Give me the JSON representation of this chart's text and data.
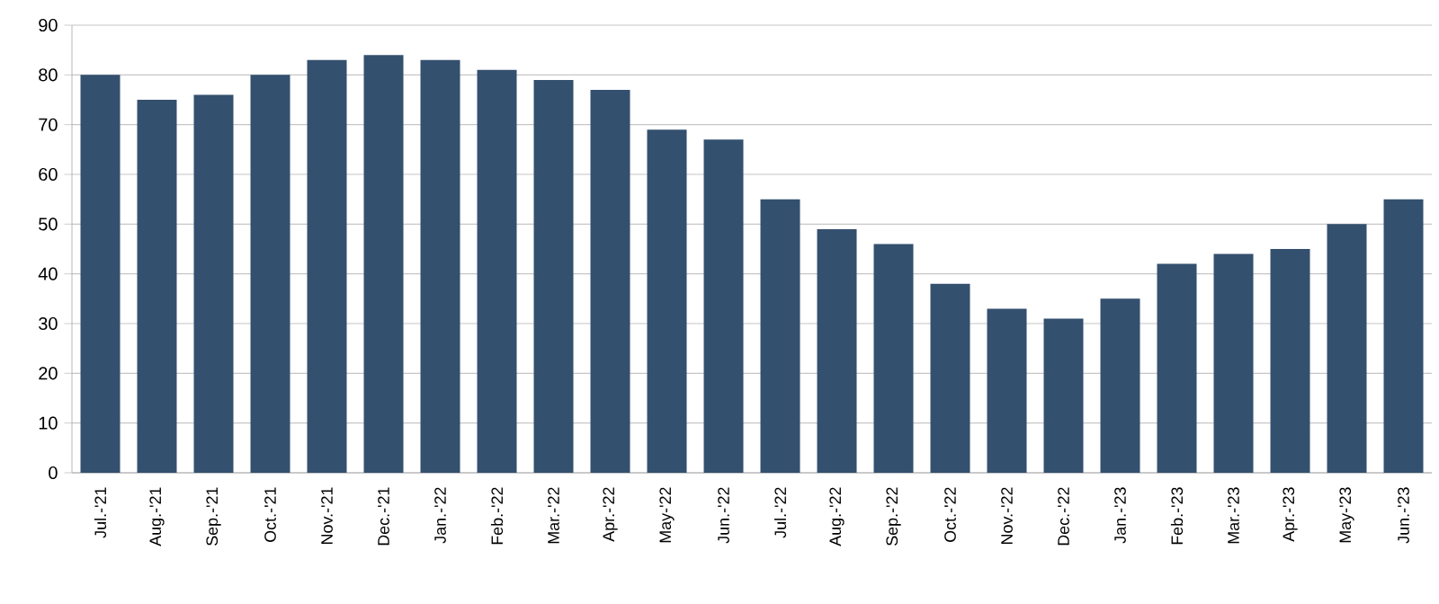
{
  "chart_data": {
    "type": "bar",
    "categories": [
      "Jul.-'21",
      "Aug.-'21",
      "Sep.-'21",
      "Oct.-'21",
      "Nov.-'21",
      "Dec.-'21",
      "Jan.-'22",
      "Feb.-'22",
      "Mar.-'22",
      "Apr.-'22",
      "May-'22",
      "Jun.-'22",
      "Jul.-'22",
      "Aug.-'22",
      "Sep.-'22",
      "Oct.-'22",
      "Nov.-'22",
      "Dec.-'22",
      "Jan.-'23",
      "Feb.-'23",
      "Mar.-'23",
      "Apr.-'23",
      "May-'23",
      "Jun.-'23"
    ],
    "values": [
      80,
      75,
      76,
      80,
      83,
      84,
      83,
      81,
      79,
      77,
      69,
      67,
      55,
      49,
      46,
      38,
      33,
      31,
      35,
      42,
      44,
      45,
      50,
      55
    ],
    "color": "#34506f",
    "ylim": [
      0,
      90
    ],
    "yticks": [
      0,
      10,
      20,
      30,
      40,
      50,
      60,
      70,
      80,
      90
    ],
    "grid": "y"
  }
}
